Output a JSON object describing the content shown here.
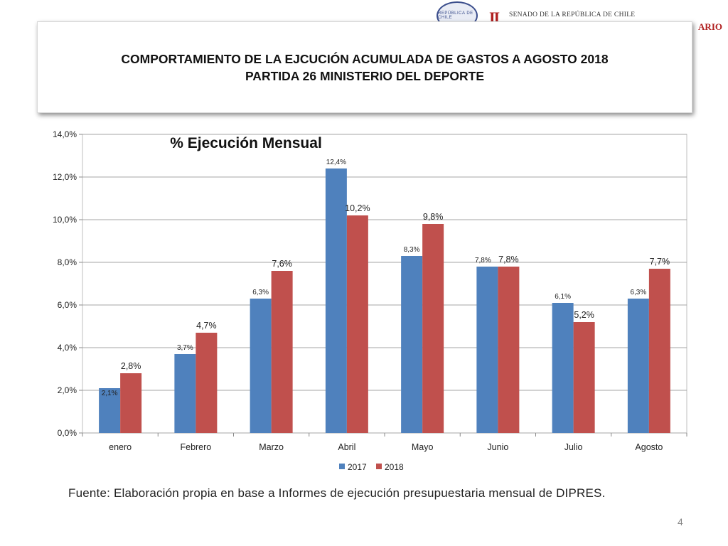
{
  "header": {
    "seal_text": "REPÚBLICA DE CHILE",
    "logo_mark": "II",
    "institution": "SENADO DE LA REPÚBLICA DE CHILE",
    "fragment": "ARIO"
  },
  "title": {
    "line1": "COMPORTAMIENTO DE LA EJCUCIÓN ACUMULADA DE GASTOS A AGOSTO 2018",
    "line2": "PARTIDA 26 MINISTERIO DEL DEPORTE"
  },
  "chart_data": {
    "type": "bar",
    "title": "% Ejecución Mensual",
    "categories": [
      "enero",
      "Febrero",
      "Marzo",
      "Abril",
      "Mayo",
      "Junio",
      "Julio",
      "Agosto"
    ],
    "series": [
      {
        "name": "2017",
        "color": "#4f81bd",
        "values": [
          2.1,
          3.7,
          6.3,
          12.4,
          8.3,
          7.8,
          6.1,
          6.3
        ],
        "labels": [
          "2,1%",
          "3,7%",
          "6,3%",
          "12,4%",
          "8,3%",
          "7,8%",
          "6,1%",
          "6,3%"
        ]
      },
      {
        "name": "2018",
        "color": "#c0504d",
        "values": [
          2.8,
          4.7,
          7.6,
          10.2,
          9.8,
          7.8,
          5.2,
          7.7
        ],
        "labels": [
          "2,8%",
          "4,7%",
          "7,6%",
          "10,2%",
          "9,8%",
          "7,8%",
          "5,2%",
          "7,7%"
        ]
      }
    ],
    "ylim": [
      0,
      14
    ],
    "yticks": [
      0,
      2,
      4,
      6,
      8,
      10,
      12,
      14
    ],
    "ytick_labels": [
      "0,0%",
      "2,0%",
      "4,0%",
      "6,0%",
      "8,0%",
      "10,0%",
      "12,0%",
      "14,0%"
    ],
    "grid": true,
    "legend": "bottom-center",
    "xlabel": "",
    "ylabel": ""
  },
  "source": "Fuente: Elaboración propia en base  a Informes de ejecución presupuestaria mensual de DIPRES.",
  "page_number": "4"
}
